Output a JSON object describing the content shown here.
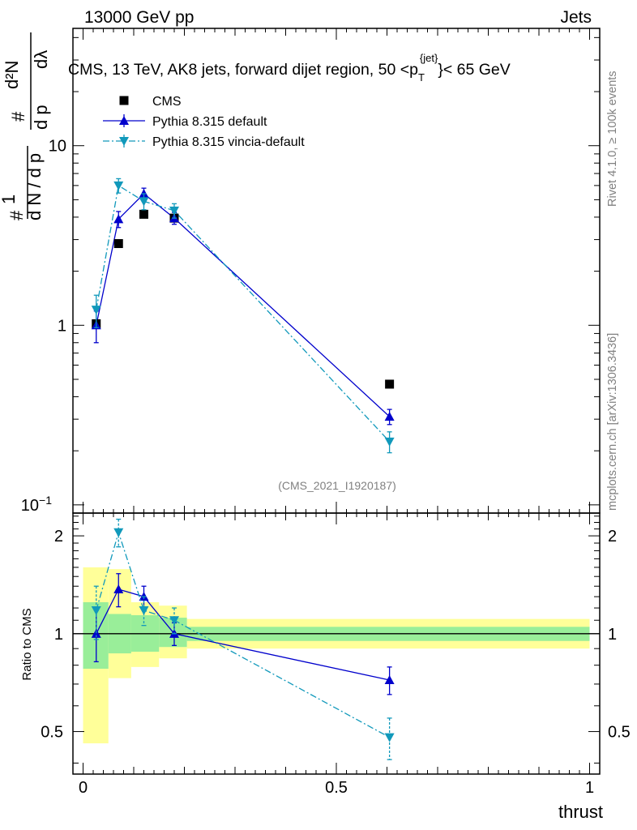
{
  "header": {
    "left": "13000 GeV pp",
    "right": "Jets"
  },
  "title": {
    "main": "CMS, 13 TeV, AK8 jets, forward dijet region, 50 <p",
    "sub": "T",
    "sup": "{jet}",
    "tail": "}< 65 GeV"
  },
  "side_labels": {
    "rivet": "Rivet 4.1.0, ≥ 100k events",
    "mcplots": "mcplots.cern.ch [arXiv:1306.3436]"
  },
  "analysis_id": "(CMS_2021_I1920187)",
  "ylabel_main": "1/N dN/dp_T  ·  d²N/dp_T dλ",
  "chart_data": [
    {
      "type": "scatter",
      "panel": "main",
      "yscale": "log",
      "ylim": [
        0.09,
        45
      ],
      "xlim": [
        -0.02,
        1.02
      ],
      "yticks": [
        {
          "v": 0.1,
          "label": "10",
          "sup": "−1"
        },
        {
          "v": 1,
          "label": "1",
          "sup": ""
        },
        {
          "v": 10,
          "label": "10",
          "sup": ""
        }
      ],
      "legend": [
        {
          "name": "CMS",
          "marker": "square",
          "color": "#000000"
        },
        {
          "name": "Pythia 8.315 default",
          "marker": "triangle-up",
          "color": "#0000cc"
        },
        {
          "name": "Pythia 8.315 vincia-default",
          "marker": "triangle-down",
          "color": "#1199bb"
        }
      ],
      "series": [
        {
          "name": "CMS",
          "color": "#000000",
          "x": [
            0.026,
            0.07,
            0.12,
            0.18,
            0.605
          ],
          "y": [
            1.02,
            2.85,
            4.15,
            3.95,
            0.47
          ]
        },
        {
          "name": "Pythia 8.315 default",
          "color": "#0000cc",
          "x": [
            0.026,
            0.07,
            0.12,
            0.18,
            0.605
          ],
          "y": [
            1.0,
            3.9,
            5.4,
            3.95,
            0.31
          ],
          "err": [
            0.2,
            0.4,
            0.4,
            0.3,
            0.03
          ]
        },
        {
          "name": "Pythia 8.315 vincia-default",
          "color": "#1199bb",
          "x": [
            0.026,
            0.07,
            0.12,
            0.18,
            0.605
          ],
          "y": [
            1.22,
            6.0,
            4.9,
            4.35,
            0.225
          ],
          "err": [
            0.25,
            0.55,
            0.5,
            0.4,
            0.03
          ]
        }
      ]
    },
    {
      "type": "scatter",
      "panel": "ratio",
      "ylabel": "Ratio to CMS",
      "xlabel": "thrust",
      "ylim": [
        0.37,
        2.35
      ],
      "xlim": [
        -0.02,
        1.02
      ],
      "yticks": [
        0.5,
        1,
        2
      ],
      "xticks": [
        {
          "v": 0,
          "label": "0"
        },
        {
          "v": 0.5,
          "label": "0.5"
        },
        {
          "v": 1,
          "label": "1"
        }
      ],
      "bands": {
        "edges": [
          0.0,
          0.05,
          0.095,
          0.15,
          0.205,
          1.0
        ],
        "stat_lo": [
          0.78,
          0.87,
          0.88,
          0.91,
          0.95
        ],
        "stat_hi": [
          1.25,
          1.15,
          1.14,
          1.12,
          1.05
        ],
        "tot_lo": [
          0.46,
          0.73,
          0.79,
          0.84,
          0.9
        ],
        "tot_hi": [
          1.6,
          1.58,
          1.25,
          1.22,
          1.11
        ],
        "stat_color": "#99ee99",
        "tot_color": "#ffff99"
      },
      "series": [
        {
          "name": "Pythia 8.315 default",
          "color": "#0000cc",
          "x": [
            0.026,
            0.07,
            0.12,
            0.18,
            0.605
          ],
          "y": [
            1.0,
            1.37,
            1.3,
            1.0,
            0.72
          ],
          "err": [
            0.18,
            0.16,
            0.1,
            0.08,
            0.07
          ]
        },
        {
          "name": "Pythia 8.315 vincia-default",
          "color": "#1199bb",
          "x": [
            0.026,
            0.07,
            0.12,
            0.18,
            0.605
          ],
          "y": [
            1.18,
            2.05,
            1.18,
            1.1,
            0.48
          ],
          "err": [
            0.22,
            0.2,
            0.12,
            0.1,
            0.07
          ]
        }
      ]
    }
  ]
}
